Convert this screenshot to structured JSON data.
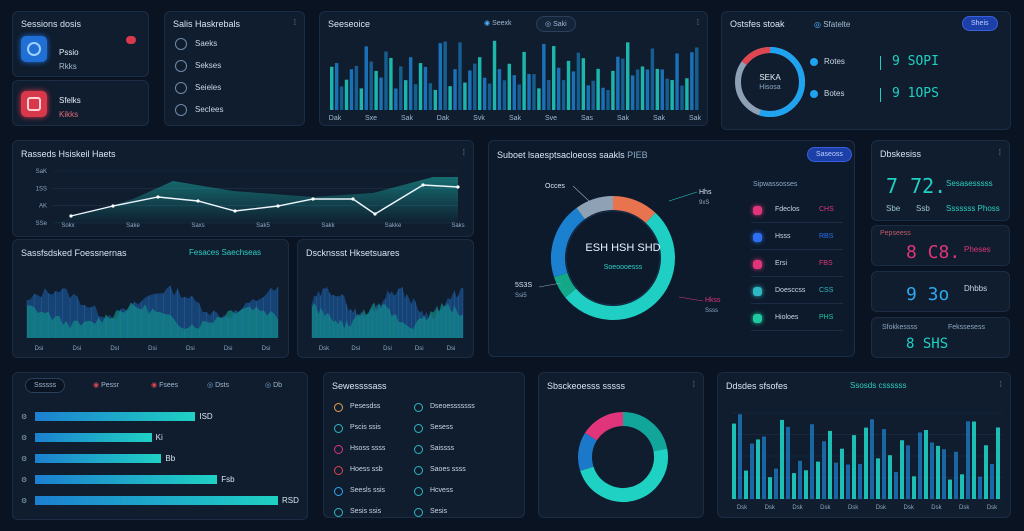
{
  "profile_panel": {
    "title": "Sessions dosis",
    "items": [
      {
        "name": "Pssio",
        "sub": "Rkks"
      },
      {
        "name": "Sfelks",
        "sub": "Kikks"
      }
    ],
    "colors": [
      "#1f6fd6",
      "#d9384a"
    ]
  },
  "status_panel": {
    "title": "Salis Haskrebals",
    "items": [
      "Saeks",
      "Sekses",
      "Seieles",
      "Seclees"
    ]
  },
  "sessions_chart": {
    "title": "Seeseoice",
    "controls": [
      "Seexk",
      "Saki"
    ],
    "x_labels": [
      "Dak",
      "Sxe",
      "Sak",
      "Dak",
      "Svk",
      "Sak",
      "Sve",
      "Sas",
      "Sak",
      "Sak",
      "Sak"
    ]
  },
  "kpi_ring_panel": {
    "title": "Ostsfes stoak",
    "legend_label": "Sfatelte",
    "button": "Sheis",
    "center": {
      "main": "SEKA",
      "sub": "Hisosa"
    },
    "rows": [
      {
        "label": "Rotes",
        "value": "9 SOPI"
      },
      {
        "label": "Botes",
        "value": "9 1OPS"
      }
    ],
    "ring_percent": 55
  },
  "line_chart": {
    "title": "Rasseds Hsiskeil Haets",
    "y_labels": [
      "SaK",
      "1SS",
      "AK",
      "SSe"
    ],
    "x_labels": [
      "Sokx",
      "Sake",
      "Saxs",
      "Sak5",
      "Sakk",
      "Sakke",
      "Saks"
    ]
  },
  "area_left": {
    "title": "Sassfsdsked Foessnernas",
    "legend": "Fesaces Saechseas",
    "x_labels": [
      "Dsi",
      "Dsi",
      "Dsl",
      "Dsi",
      "Dsi",
      "Dsi",
      "Dsi"
    ]
  },
  "area_right": {
    "title": "Dscknssst Hksetsuares",
    "x_labels": [
      "Dsk",
      "Dsi",
      "Dsi",
      "Dsi",
      "Dsi"
    ]
  },
  "donut_panel": {
    "title": "Suboet lsaesptsacloeoss saakls",
    "code": "PIEB",
    "button": "Saseoss",
    "center": {
      "main": "ESH HSH SHD",
      "sub": "Soeoooesss"
    },
    "callouts": [
      {
        "text": "Occes",
        "value": ""
      },
      {
        "text": "Hhs",
        "value": "9xS"
      },
      {
        "text": "5S3S",
        "value": "Ssi5"
      },
      {
        "text": "Hkss",
        "value": "Ssss"
      }
    ],
    "legend_title": "Sipwassosses",
    "legend": [
      {
        "label": "Fdeclos",
        "value": "CHS",
        "color": "#e0357a"
      },
      {
        "label": "Hsss",
        "value": "RBS",
        "color": "#2d6ff0"
      },
      {
        "label": "Ersi",
        "value": "FBS",
        "color": "#e0357a"
      },
      {
        "label": "Doesccss",
        "value": "CSS",
        "color": "#2fb7c2"
      },
      {
        "label": "Hioloes",
        "value": "PHS",
        "color": "#1fc9a0"
      }
    ],
    "segments": [
      {
        "percent": 12,
        "color": "#e8734f"
      },
      {
        "percent": 52,
        "color": "#1fcfc4"
      },
      {
        "percent": 6,
        "color": "#12a888"
      },
      {
        "percent": 20,
        "color": "#1c80d0"
      },
      {
        "percent": 10,
        "color": "#8fa2b5"
      }
    ]
  },
  "right_stats": {
    "card1": {
      "title": "Dbskesiss",
      "big": "7 72.",
      "side": "Sesasesssss",
      "row": [
        "Sbe",
        "Ssb",
        "Sssssss Phoss"
      ]
    },
    "card2": {
      "title": "Pepseess",
      "big": "8 C8.",
      "side": "Pheses"
    },
    "card3": {
      "big": "9 3o",
      "side": "Dhbbs"
    },
    "card4": {
      "title": "Sfokkessss",
      "title2": "Fekssesess",
      "big": "8 SHS"
    }
  },
  "progress_panel": {
    "tabs": [
      "Ssssss",
      "Pessr",
      "Fsees",
      "Dsts",
      "Db"
    ],
    "rows": [
      {
        "label": "ISD",
        "value": 0.66
      },
      {
        "label": "Ki",
        "value": 0.48
      },
      {
        "label": "Bb",
        "value": 0.52
      },
      {
        "label": "Fsb",
        "value": 0.75
      },
      {
        "label": "RSD",
        "value": 1.0
      }
    ]
  },
  "services_panel": {
    "title": "Sewessssass",
    "left": [
      "Pesesdss",
      "Pscis ssis",
      "Hsoss ssss",
      "Hoess ssb",
      "Seesls ssis",
      "Sesis ssis"
    ],
    "right": [
      "Dseoesssssss",
      "Sesess",
      "Saissss",
      "Saoes ssss",
      "Hcvess",
      "Sesis"
    ]
  },
  "small_donut_panel": {
    "title": "Sbsckeoesss sssss",
    "segments": [
      {
        "percent": 22,
        "color": "#12a69a"
      },
      {
        "percent": 48,
        "color": "#1fd1c3"
      },
      {
        "percent": 14,
        "color": "#1c78c8"
      },
      {
        "percent": 16,
        "color": "#e0357a"
      }
    ]
  },
  "bar_panel": {
    "title": "Ddsdes sfsofes",
    "legend": "Ssosds cssssss",
    "x_labels": [
      "Dsk",
      "Dsk",
      "Dsk",
      "Dsk",
      "Dsk",
      "Dsk",
      "Dsk",
      "Dsk",
      "Dsk",
      "Dsk"
    ]
  }
}
